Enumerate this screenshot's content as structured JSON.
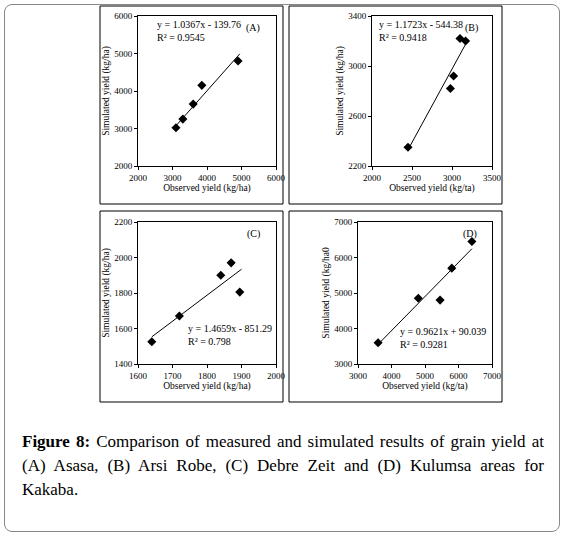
{
  "chart_data": [
    {
      "type": "scatter",
      "title": "(A)",
      "x_label": "Observed yield (kg/ha)",
      "y_label": "Simulated yield (kg/ha)",
      "annotations": [
        "y = 1.0367x - 139.76",
        "R² = 0.9545"
      ],
      "xlim": [
        2000,
        6000
      ],
      "xticks": [
        2000,
        3000,
        4000,
        5000,
        6000
      ],
      "ylim": [
        2000,
        6000
      ],
      "yticks": [
        2000,
        3000,
        4000,
        5000,
        6000
      ],
      "grid": false,
      "series": [
        {
          "type": "scatter",
          "marker": "diamond",
          "color": "#000000",
          "x": [
            3100,
            3300,
            3600,
            3850,
            4900
          ],
          "values": [
            3020,
            3250,
            3650,
            4150,
            4800
          ]
        },
        {
          "type": "line",
          "line_style": "solid",
          "color": "#000000",
          "x": [
            3050,
            4950
          ],
          "values": [
            3020,
            4990
          ]
        }
      ]
    },
    {
      "type": "scatter",
      "title": "(B)",
      "x_label": "Observed yield (kg/ta)",
      "y_label": "Simulated yield (kg/ha)",
      "annotations": [
        "y = 1.1723x - 544.38",
        "R² = 0.9418"
      ],
      "xlim": [
        2000,
        3500
      ],
      "xticks": [
        2000,
        2500,
        3000,
        3500
      ],
      "ylim": [
        2200,
        3400
      ],
      "yticks": [
        2200,
        2600,
        3000,
        3400
      ],
      "grid": false,
      "series": [
        {
          "type": "scatter",
          "marker": "diamond",
          "color": "#000000",
          "x": [
            2450,
            2980,
            3020,
            3100,
            3170
          ],
          "values": [
            2350,
            2820,
            2920,
            3220,
            3200
          ]
        },
        {
          "type": "line",
          "line_style": "solid",
          "color": "#000000",
          "x": [
            2450,
            3200
          ],
          "values": [
            2330,
            3210
          ]
        }
      ]
    },
    {
      "type": "scatter",
      "title": "(C)",
      "x_label": "Observed yield (kg/ha)",
      "y_label": "Simulated yield (kg/ha)",
      "annotations": [
        "y = 1.4659x - 851.29",
        "R² = 0.798"
      ],
      "xlim": [
        1600,
        2000
      ],
      "xticks": [
        1600,
        1700,
        1800,
        1900,
        2000
      ],
      "ylim": [
        1400,
        2200
      ],
      "yticks": [
        1400,
        1600,
        1800,
        2000,
        2200
      ],
      "grid": false,
      "series": [
        {
          "type": "scatter",
          "marker": "diamond",
          "color": "#000000",
          "x": [
            1640,
            1720,
            1840,
            1870,
            1895
          ],
          "values": [
            1525,
            1670,
            1900,
            1970,
            1805
          ]
        },
        {
          "type": "line",
          "line_style": "solid",
          "color": "#000000",
          "x": [
            1640,
            1900
          ],
          "values": [
            1553,
            1934
          ]
        }
      ]
    },
    {
      "type": "scatter",
      "title": "(D)",
      "x_label": "Observed yield (kg/ta)",
      "y_label": "Simulated yield (kg/ha0",
      "annotations": [
        "y = 0.9621x + 90.039",
        "R² = 0.9281"
      ],
      "xlim": [
        3000,
        7000
      ],
      "xticks": [
        3000,
        4000,
        5000,
        6000,
        7000
      ],
      "ylim": [
        3000,
        7000
      ],
      "yticks": [
        3000,
        4000,
        5000,
        6000,
        7000
      ],
      "grid": false,
      "series": [
        {
          "type": "scatter",
          "marker": "diamond",
          "color": "#000000",
          "x": [
            3600,
            4800,
            5450,
            5800,
            6400
          ],
          "values": [
            3600,
            4850,
            4800,
            5700,
            6450
          ]
        },
        {
          "type": "line",
          "line_style": "solid",
          "color": "#000000",
          "x": [
            3600,
            6400
          ],
          "values": [
            3554,
            6247
          ]
        }
      ]
    }
  ],
  "caption": {
    "label": "Figure 8:",
    "text": "Comparison of measured and simulated results of grain yield at (A) Asasa, (B) Arsi Robe, (C) Debre Zeit and (D) Kulumsa areas for Kakaba."
  }
}
